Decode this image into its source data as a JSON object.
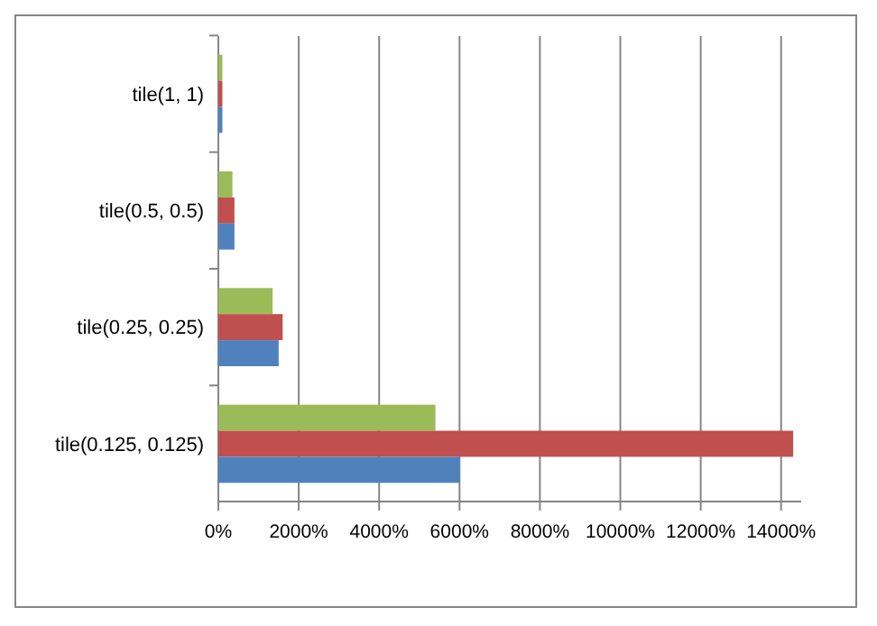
{
  "chart_data": {
    "type": "bar",
    "orientation": "horizontal",
    "categories": [
      "tile(1, 1)",
      "tile(0.5, 0.5)",
      "tile(0.25, 0.25)",
      "tile(0.125, 0.125)"
    ],
    "series": [
      {
        "color": "#9bbb59",
        "values": [
          100,
          350,
          1350,
          5400
        ]
      },
      {
        "color": "#c0504d",
        "values": [
          100,
          400,
          1600,
          14300
        ]
      },
      {
        "color": "#4f81bd",
        "values": [
          100,
          400,
          1500,
          6000
        ]
      }
    ],
    "xlim": [
      0,
      14500
    ],
    "xticks": [
      {
        "value": 0,
        "label": "0%"
      },
      {
        "value": 2000,
        "label": "2000%"
      },
      {
        "value": 4000,
        "label": "4000%"
      },
      {
        "value": 6000,
        "label": "6000%"
      },
      {
        "value": 8000,
        "label": "8000%"
      },
      {
        "value": 10000,
        "label": "10000%"
      },
      {
        "value": 12000,
        "label": "12000%"
      },
      {
        "value": 14000,
        "label": "14000%"
      }
    ],
    "grid": "x"
  }
}
